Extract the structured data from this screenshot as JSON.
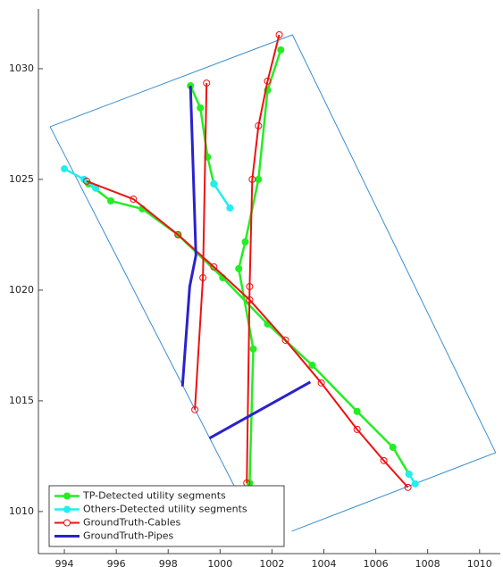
{
  "chart_data": {
    "type": "line",
    "xlim": [
      993,
      1010.8
    ],
    "ylim": [
      1008.1,
      1032.7
    ],
    "xticks": [
      994,
      996,
      998,
      1000,
      1002,
      1004,
      1006,
      1008,
      1010
    ],
    "yticks": [
      1010,
      1015,
      1020,
      1025,
      1030
    ],
    "legend": "lower left",
    "series": [
      {
        "color": "#3a8fd0",
        "marker": "none",
        "line_width": 1,
        "x": [
          993.45,
          1002.79,
          1010.62,
          1002.76,
          null,
          993.45,
          1000.7
        ],
        "values": [
          1027.38,
          1031.53,
          1012.66,
          1009.11,
          null,
          1027.38,
          1010.8
        ]
      },
      {
        "name": "TP-Detected utility segments",
        "color": "#22ee22",
        "marker": "filled",
        "line_width": 2.5,
        "x": [
          994.93,
          995.79,
          997.0,
          998.38,
          1000.1,
          1001.83,
          1003.55,
          1005.28,
          1006.66,
          1007.28,
          null,
          1001.14,
          1001.28,
          1000.72,
          1000.97,
          1001.48,
          1001.83,
          1002.34,
          null,
          998.86,
          999.24,
          999.52,
          999.76
        ],
        "values": [
          1024.8,
          1024.03,
          1023.67,
          1022.5,
          1020.56,
          1018.47,
          1016.61,
          1014.52,
          1012.9,
          1011.69,
          null,
          1011.29,
          1017.34,
          1020.97,
          1022.18,
          1025.0,
          1029.03,
          1030.85,
          null,
          1029.23,
          1028.23,
          1026.01,
          1024.8
        ]
      },
      {
        "name": "Others-Detected utility segments",
        "color": "#22eeee",
        "marker": "filled",
        "line_width": 2.5,
        "x": [
          994.0,
          994.76,
          995.21,
          null,
          999.76,
          1000.38,
          null,
          1007.28,
          1007.52
        ],
        "values": [
          1025.48,
          1025.0,
          1024.6,
          null,
          1024.8,
          1023.71,
          null,
          1011.69,
          1011.25
        ]
      },
      {
        "name": "GroundTruth-Cables",
        "color": "#ee1111",
        "marker": "open",
        "line_width": 2,
        "x": [
          994.86,
          996.66,
          998.38,
          999.76,
          1001.14,
          1002.52,
          1003.9,
          1005.28,
          1006.31,
          1007.24,
          null,
          1001.03,
          1001.14,
          1001.24,
          1001.48,
          1001.83,
          1002.28,
          null,
          999.03,
          999.34,
          999.48
        ],
        "values": [
          1024.92,
          1024.11,
          1022.5,
          1021.05,
          1019.56,
          1017.74,
          1015.81,
          1013.71,
          1012.3,
          1011.09,
          null,
          1011.29,
          1020.16,
          1025.0,
          1027.42,
          1029.44,
          1031.53,
          null,
          1014.6,
          1020.56,
          1029.35
        ]
      },
      {
        "name": "GroundTruth-Pipes",
        "color": "#2a22cc",
        "marker": "none",
        "line_width": 3,
        "x": [
          998.55,
          998.83,
          999.07,
          998.86,
          null,
          999.59,
          1003.48
        ],
        "values": [
          1015.65,
          1020.16,
          1021.57,
          1029.23,
          null,
          1013.31,
          1015.85
        ]
      }
    ]
  }
}
